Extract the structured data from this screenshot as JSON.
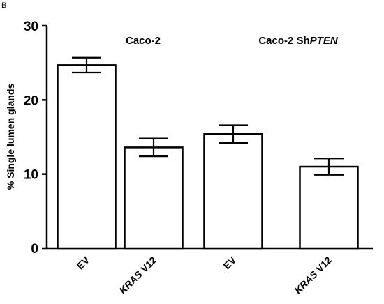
{
  "panel_label": "B",
  "chart_data": {
    "type": "bar",
    "title": "",
    "ylabel": "% Single lumen glands",
    "xlabel": "",
    "ylim": [
      0,
      30
    ],
    "yticks": [
      0,
      10,
      20,
      30
    ],
    "grid": false,
    "group_labels": [
      {
        "prefix": "Caco-2",
        "italic": ""
      },
      {
        "prefix": "Caco-2 Sh",
        "italic": "PTEN"
      }
    ],
    "categories": [
      {
        "prefix": "",
        "italic": "",
        "plain": "EV"
      },
      {
        "prefix": "",
        "italic": "KRAS",
        "plain": " V12"
      },
      {
        "prefix": "",
        "italic": "",
        "plain": "EV"
      },
      {
        "prefix": "",
        "italic": "KRAS",
        "plain": " V12"
      }
    ],
    "values": [
      24.7,
      13.6,
      15.4,
      11.0
    ],
    "errors": [
      1.0,
      1.2,
      1.2,
      1.1
    ],
    "bar_fill": "#ffffff",
    "bar_stroke": "#000000"
  }
}
